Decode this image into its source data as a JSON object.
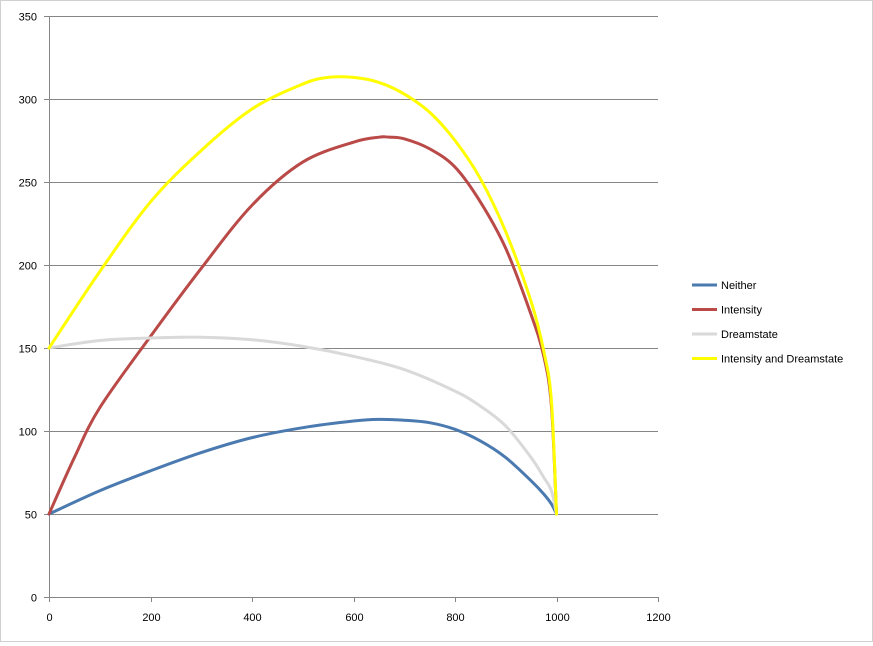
{
  "chart_data": {
    "type": "line",
    "title": "",
    "xlabel": "",
    "ylabel": "",
    "xlim": [
      0,
      1200
    ],
    "ylim": [
      0,
      350
    ],
    "x_ticks": [
      0,
      200,
      400,
      600,
      800,
      1000,
      1200
    ],
    "y_ticks": [
      0,
      50,
      100,
      150,
      200,
      250,
      300,
      350
    ],
    "grid": "horizontal",
    "legend_position": "right",
    "series": [
      {
        "name": "Neither",
        "color": "#4a7ab0",
        "x": [
          0,
          100,
          200,
          300,
          400,
          500,
          600,
          650,
          700,
          750,
          800,
          850,
          900,
          950,
          975,
          990,
          1000
        ],
        "y": [
          50,
          64,
          76,
          87,
          96,
          102,
          106,
          107,
          106.5,
          105,
          101,
          94,
          84,
          70,
          62,
          56,
          50
        ]
      },
      {
        "name": "Intensity",
        "color": "#b94a48",
        "x": [
          0,
          50,
          100,
          200,
          300,
          400,
          500,
          600,
          650,
          670,
          700,
          750,
          800,
          850,
          900,
          950,
          975,
          990,
          1000
        ],
        "y": [
          50,
          84,
          114,
          157,
          198,
          236,
          262,
          274,
          277,
          277,
          276,
          270,
          259,
          238,
          210,
          170,
          145,
          115,
          50
        ]
      },
      {
        "name": "Dreamstate",
        "color": "#d9d9d9",
        "x": [
          0,
          100,
          200,
          300,
          400,
          500,
          600,
          700,
          800,
          850,
          900,
          950,
          975,
          990,
          1000
        ],
        "y": [
          150,
          154.5,
          156,
          156.5,
          155,
          151,
          145,
          137,
          124,
          115,
          103,
          84,
          72,
          64,
          50
        ]
      },
      {
        "name": "Intensity and Dreamstate",
        "color": "#ffff00",
        "x": [
          0,
          100,
          200,
          300,
          400,
          500,
          550,
          600,
          650,
          700,
          750,
          800,
          850,
          900,
          950,
          975,
          990,
          1000
        ],
        "y": [
          150,
          196,
          238,
          269,
          294,
          309,
          313,
          313,
          310,
          303,
          292,
          275,
          252,
          220,
          178,
          148,
          118,
          50
        ]
      }
    ]
  }
}
